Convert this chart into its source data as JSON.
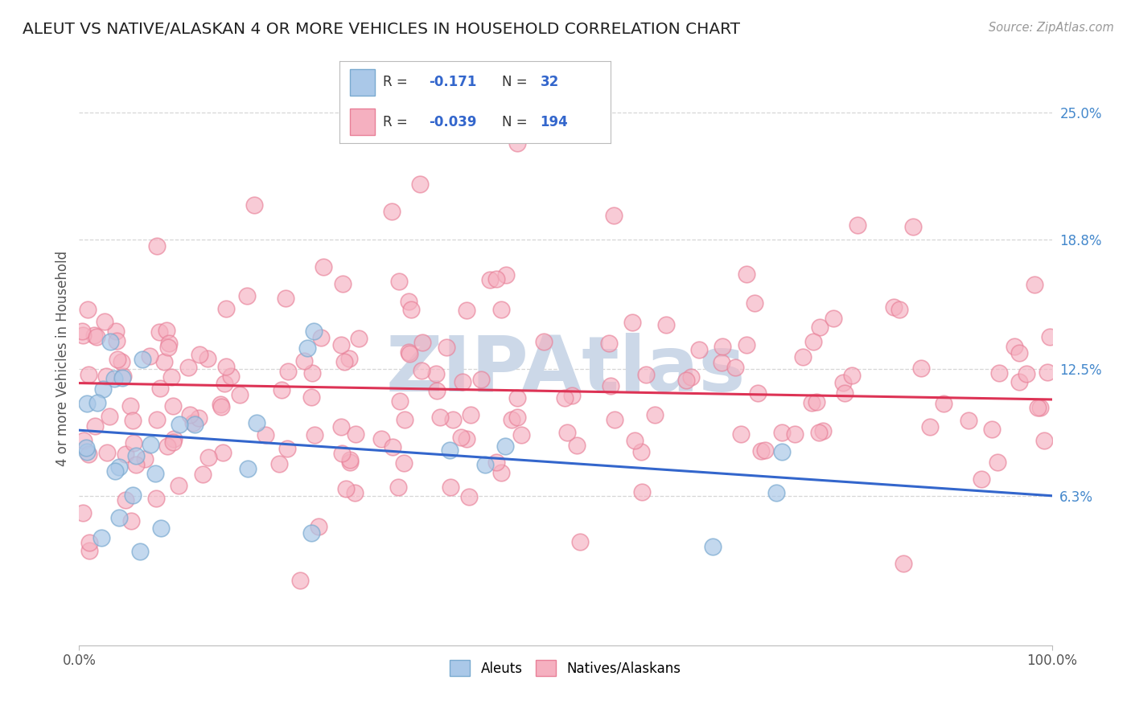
{
  "title": "ALEUT VS NATIVE/ALASKAN 4 OR MORE VEHICLES IN HOUSEHOLD CORRELATION CHART",
  "source": "Source: ZipAtlas.com",
  "ylabel": "4 or more Vehicles in Household",
  "xlim": [
    0,
    100
  ],
  "ylim": [
    -1,
    27
  ],
  "ytick_vals": [
    6.3,
    12.5,
    18.8,
    25.0
  ],
  "ytick_labels": [
    "6.3%",
    "12.5%",
    "18.8%",
    "25.0%"
  ],
  "xtick_vals": [
    0,
    100
  ],
  "xtick_labels": [
    "0.0%",
    "100.0%"
  ],
  "legend_R1": "-0.171",
  "legend_N1": "32",
  "legend_R2": "-0.039",
  "legend_N2": "194",
  "aleuts_label": "Aleuts",
  "natives_label": "Natives/Alaskans",
  "dot_color_aleut": "#aac8e8",
  "dot_edge_aleut": "#7aaad0",
  "dot_color_native": "#f5b0c0",
  "dot_edge_native": "#e88098",
  "line_color_aleut": "#3366cc",
  "line_color_native": "#dd3355",
  "background_color": "#ffffff",
  "grid_color": "#cccccc",
  "title_color": "#222222",
  "watermark": "ZIPAtlas",
  "watermark_color": "#ccd8e8",
  "aleut_line_x0": 0,
  "aleut_line_x1": 100,
  "aleut_line_y0": 9.5,
  "aleut_line_y1": 6.3,
  "native_line_x0": 0,
  "native_line_x1": 100,
  "native_line_y0": 11.8,
  "native_line_y1": 11.0
}
